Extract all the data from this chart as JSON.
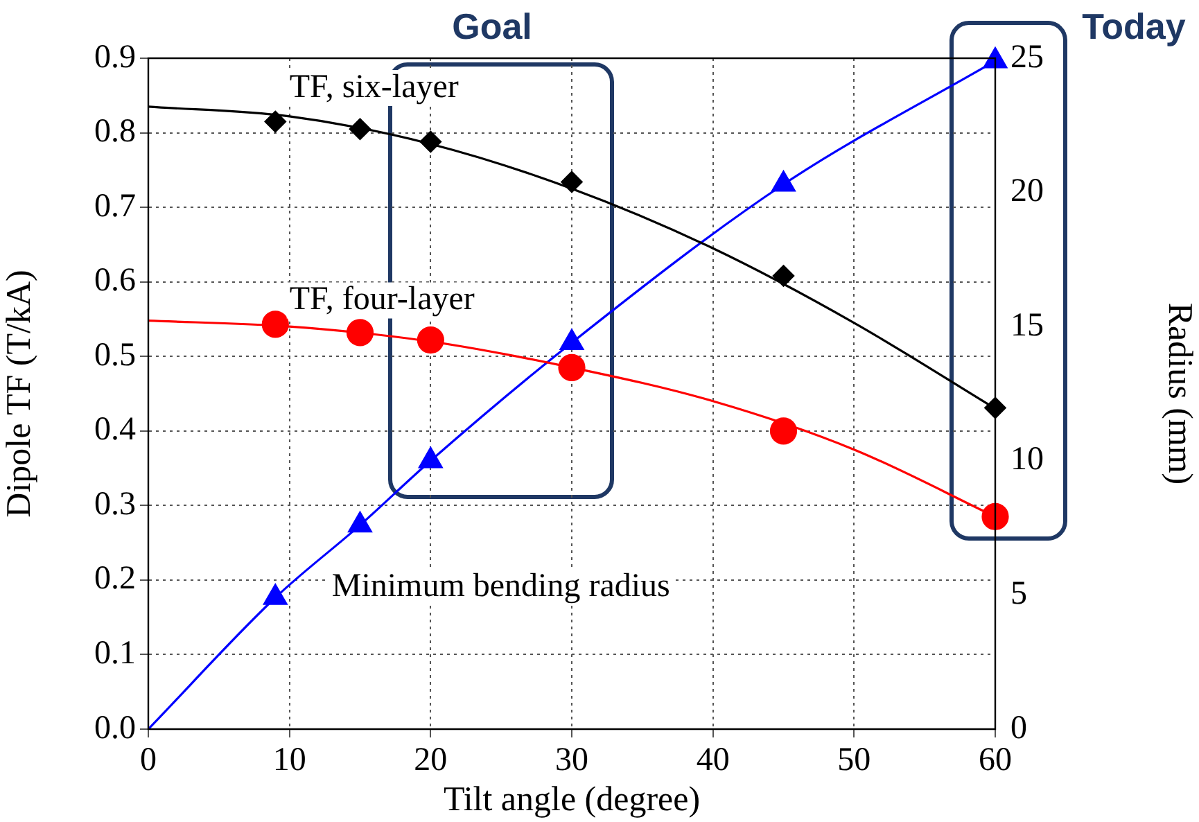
{
  "chart_data": {
    "type": "line",
    "xlabel": "Tilt angle (degree)",
    "ylabel": "Dipole TF (T/kA)",
    "y2label": "Radius (mm)",
    "xlim": [
      0,
      60
    ],
    "xticks": [
      0,
      10,
      20,
      30,
      40,
      50,
      60
    ],
    "ylim": [
      0,
      0.9
    ],
    "yticks": [
      {
        "value": 0,
        "label": "0.0"
      },
      0.1,
      0.2,
      0.3,
      0.4,
      0.5,
      0.6,
      0.7,
      0.8,
      0.9
    ],
    "y2lim": [
      0,
      25
    ],
    "y2ticks": [
      0,
      5,
      10,
      15,
      20,
      25
    ],
    "grid": true,
    "legend": false,
    "series": [
      {
        "color": "#000000",
        "marker": "none",
        "x": [
          0,
          10,
          20,
          30,
          40,
          50,
          60
        ],
        "values": [
          0.835,
          0.822,
          0.785,
          0.725,
          0.645,
          0.545,
          0.43
        ]
      },
      {
        "type": "scatter",
        "name": "TF, six-layer",
        "color": "#000000",
        "marker": "diamond",
        "x": [
          9,
          15,
          20,
          30,
          45,
          60
        ],
        "values": [
          0.815,
          0.805,
          0.788,
          0.734,
          0.608,
          0.431
        ]
      },
      {
        "color": "#ff0000",
        "marker": "none",
        "x": [
          0,
          10,
          20,
          30,
          40,
          50,
          60
        ],
        "values": [
          0.548,
          0.54,
          0.52,
          0.485,
          0.44,
          0.375,
          0.285
        ]
      },
      {
        "type": "scatter",
        "name": "TF, four-layer",
        "color": "#ff0000",
        "marker": "circle",
        "x": [
          9,
          15,
          20,
          30,
          45,
          60
        ],
        "values": [
          0.543,
          0.532,
          0.522,
          0.485,
          0.4,
          0.285
        ]
      },
      {
        "color": "#0000ff",
        "marker": "none",
        "axis": "y2",
        "x": [
          0,
          9,
          15,
          20,
          30,
          45,
          60
        ],
        "values": [
          0,
          4.9,
          7.6,
          10,
          14.4,
          20.3,
          24.9
        ]
      },
      {
        "type": "scatter",
        "name": "Minimum bending radius",
        "color": "#0000ff",
        "marker": "triangle",
        "axis": "y2",
        "x": [
          9,
          15,
          20,
          30,
          45,
          60
        ],
        "values": [
          4.9,
          7.6,
          10,
          14.4,
          20.3,
          24.9
        ]
      }
    ],
    "annotations": [
      "Goal",
      "Today"
    ]
  }
}
